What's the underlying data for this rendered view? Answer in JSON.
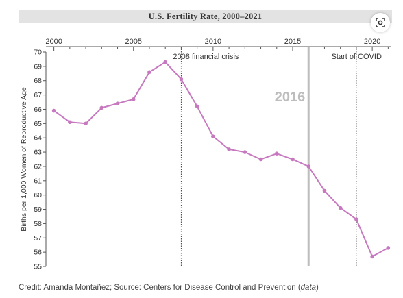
{
  "chart_data": {
    "type": "line",
    "title": "U.S. Fertility Rate, 2000–2021",
    "ylabel": "Births per 1,000 Women of Reproductive Age",
    "xlabel": "",
    "x": [
      2000,
      2001,
      2002,
      2003,
      2004,
      2005,
      2006,
      2007,
      2008,
      2009,
      2010,
      2011,
      2012,
      2013,
      2014,
      2015,
      2016,
      2017,
      2018,
      2019,
      2020,
      2021
    ],
    "series": [
      {
        "name": "",
        "color": "#c779bf",
        "values": [
          65.9,
          65.1,
          65.0,
          66.1,
          66.4,
          66.7,
          68.6,
          69.3,
          68.1,
          66.2,
          64.1,
          63.2,
          63.0,
          62.5,
          62.9,
          62.5,
          62.0,
          60.3,
          59.1,
          58.3,
          55.7,
          56.3
        ]
      }
    ],
    "xlim": [
      1999.5,
      2021.2
    ],
    "ylim": [
      55,
      70
    ],
    "x_ticks_labeled": [
      2000,
      2005,
      2010,
      2015,
      2020
    ],
    "y_ticks": [
      55,
      56,
      57,
      58,
      59,
      60,
      61,
      62,
      63,
      64,
      65,
      66,
      67,
      68,
      69,
      70
    ],
    "x_axis_position": "top",
    "grid": false,
    "annotations": [
      {
        "x": 2008.0,
        "label": "2008 financial crisis",
        "style": "dotted"
      },
      {
        "x": 2016.0,
        "label": "2016",
        "style": "solid-thick"
      },
      {
        "x": 2019.0,
        "label": "Start of COVID",
        "style": "dotted"
      }
    ]
  },
  "credit": {
    "prefix": "Credit: Amanda Montañez; Source: Centers for Disease Control and Prevention (",
    "link": "data",
    "suffix": ")"
  }
}
